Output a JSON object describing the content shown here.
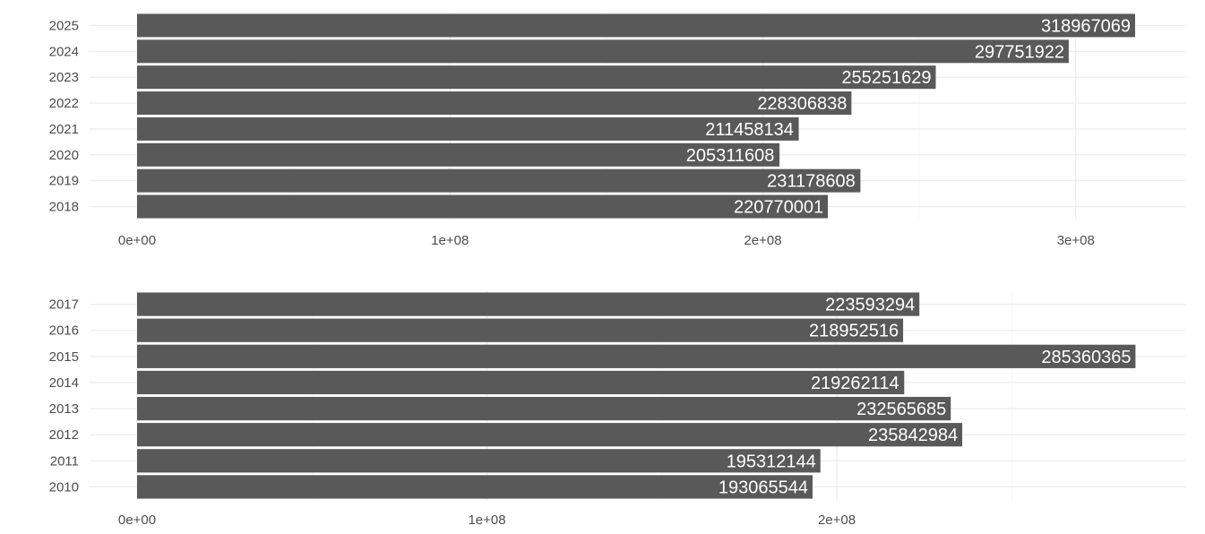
{
  "colors": {
    "bar": "#595959",
    "bar_label": "#ffffff",
    "grid_major": "#ebebeb",
    "grid_minor": "#f3f3f3",
    "text": "#4d4d4d",
    "background": "#ffffff"
  },
  "chart_data": [
    {
      "type": "bar",
      "orientation": "horizontal",
      "categories": [
        "2025",
        "2024",
        "2023",
        "2022",
        "2021",
        "2020",
        "2019",
        "2018"
      ],
      "values": [
        318967069,
        297751922,
        255251629,
        228306838,
        211458134,
        205311608,
        231178608,
        220770001
      ],
      "data_labels": [
        "318967069",
        "297751922",
        "255251629",
        "228306838",
        "211458134",
        "205311608",
        "231178608",
        "220770001"
      ],
      "xlim": [
        0,
        335000000
      ],
      "xticks": [
        0,
        100000000,
        200000000,
        300000000
      ],
      "xtick_labels": [
        "0e+00",
        "1e+08",
        "2e+08",
        "3e+08"
      ],
      "grid": true,
      "title": "",
      "xlabel": "",
      "ylabel": ""
    },
    {
      "type": "bar",
      "orientation": "horizontal",
      "categories": [
        "2017",
        "2016",
        "2015",
        "2014",
        "2013",
        "2012",
        "2011",
        "2010"
      ],
      "values": [
        223593294,
        218952516,
        285360365,
        219262114,
        232565685,
        235842984,
        195312144,
        193065544
      ],
      "data_labels": [
        "223593294",
        "218952516",
        "285360365",
        "219262114",
        "232565685",
        "235842984",
        "195312144",
        "193065544"
      ],
      "xlim": [
        0,
        299600000
      ],
      "xticks": [
        0,
        100000000,
        200000000
      ],
      "xtick_labels": [
        "0e+00",
        "1e+08",
        "2e+08"
      ],
      "grid": true,
      "title": "",
      "xlabel": "",
      "ylabel": ""
    }
  ]
}
